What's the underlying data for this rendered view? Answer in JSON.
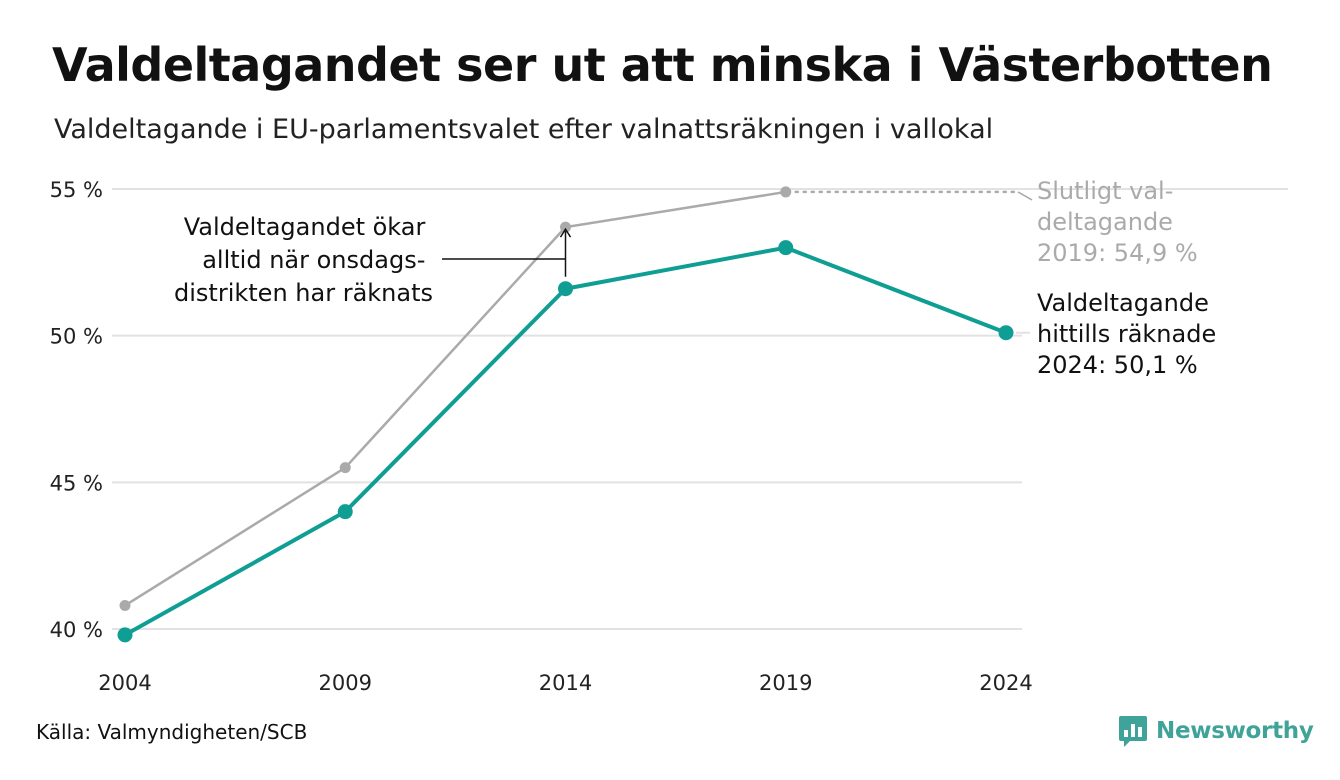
{
  "title": "Valdeltagandet ser ut att minska i Västerbotten",
  "subtitle": "Valdeltagande i EU-parlamentsvalet efter valnattsräkningen i vallokal",
  "source": "Källa: Valmyndigheten/SCB",
  "brand": {
    "name": "Newsworthy",
    "icon": "newsworthy-logo-icon",
    "color": "#3fa39a"
  },
  "colors": {
    "counted": "#0f9e94",
    "final": "#aaaaaa",
    "grid": "#e2e2e2"
  },
  "annotations": {
    "arrow_note": [
      "Valdeltagandet ökar",
      "alltid när onsdags-",
      "distrikten har räknats"
    ],
    "final_note": [
      "Slutligt val-",
      "deltagande",
      "2019: 54,9 %"
    ],
    "counted_note": [
      "Valdeltagande",
      "hittills räknade",
      "2024: 50,1 %"
    ]
  },
  "chart_data": {
    "type": "line",
    "categories": [
      "2004",
      "2009",
      "2014",
      "2019",
      "2024"
    ],
    "y_ticks": [
      40,
      45,
      50,
      55
    ],
    "y_tick_labels": [
      "40 %",
      "45 %",
      "50 %",
      "55 %"
    ],
    "ylim": [
      40,
      55
    ],
    "grid": true,
    "series": [
      {
        "name": "Slutligt valdeltagande",
        "values": [
          40.8,
          45.5,
          53.7,
          54.9,
          null
        ]
      },
      {
        "name": "Valdeltagande hittills räknade",
        "values": [
          39.8,
          44.0,
          51.6,
          53.0,
          50.1
        ]
      }
    ]
  }
}
